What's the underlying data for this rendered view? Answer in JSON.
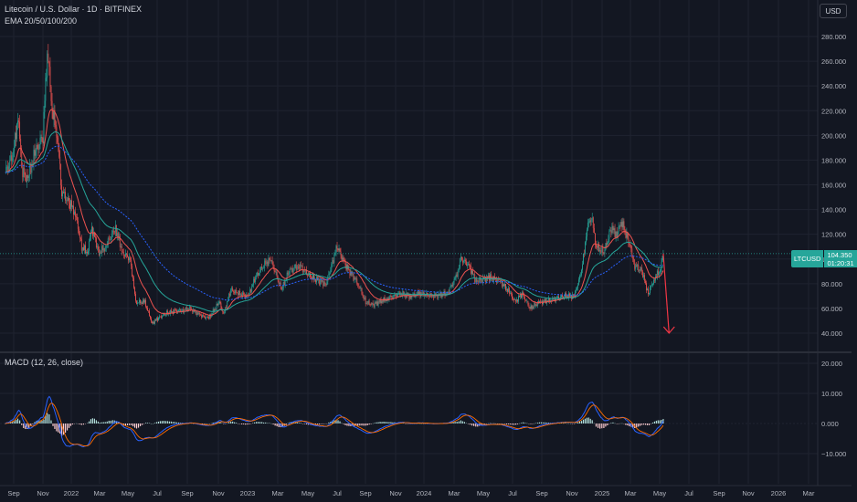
{
  "header": {
    "title": "Litecoin / U.S. Dollar · 1D · BITFINEX",
    "indicator": "EMA 20/50/100/200",
    "currency_button": "USD"
  },
  "price_tag": {
    "symbol": "LTCUSD",
    "price": "104.350",
    "countdown": "01:20:31"
  },
  "macd": {
    "label": "MACD (12, 26, close)"
  },
  "price_axis": [
    "280.000",
    "260.000",
    "240.000",
    "220.000",
    "200.000",
    "180.000",
    "160.000",
    "140.000",
    "120.000",
    "100.000",
    "80.000",
    "60.000",
    "40.000"
  ],
  "macd_axis": [
    "20.000",
    "10.000",
    "0.000",
    "−10.000"
  ],
  "time_axis": [
    "Sep",
    "Nov",
    "2022",
    "Mar",
    "May",
    "Jul",
    "Sep",
    "Nov",
    "2023",
    "Mar",
    "May",
    "Jul",
    "Sep",
    "Nov",
    "2024",
    "Mar",
    "May",
    "Jul",
    "Sep",
    "Nov",
    "2025",
    "Mar",
    "May",
    "Jul",
    "Sep",
    "Nov",
    "2026",
    "Mar"
  ],
  "colors": {
    "background": "#131722",
    "grid": "#1f2330",
    "up": "#26a69a",
    "down": "#ef5350",
    "ema20": "#ef5350",
    "ema50": "#26a69a",
    "ema100": "#2962ff",
    "macd_line": "#2962ff",
    "signal_line": "#ff6d00",
    "arrow": "#f23645"
  },
  "chart_data": {
    "type": "line",
    "price_levels": [
      280,
      260,
      240,
      220,
      200,
      180,
      160,
      140,
      120,
      100,
      80,
      60,
      40
    ],
    "close_series": [
      [
        "2021-08-15",
        170
      ],
      [
        "2021-09-01",
        185
      ],
      [
        "2021-09-10",
        215
      ],
      [
        "2021-09-20",
        170
      ],
      [
        "2021-10-01",
        165
      ],
      [
        "2021-10-15",
        185
      ],
      [
        "2021-11-01",
        200
      ],
      [
        "2021-11-10",
        270
      ],
      [
        "2021-11-20",
        220
      ],
      [
        "2021-12-01",
        200
      ],
      [
        "2021-12-10",
        155
      ],
      [
        "2021-12-25",
        145
      ],
      [
        "2022-01-05",
        140
      ],
      [
        "2022-01-20",
        110
      ],
      [
        "2022-02-01",
        105
      ],
      [
        "2022-02-10",
        125
      ],
      [
        "2022-02-25",
        105
      ],
      [
        "2022-03-10",
        110
      ],
      [
        "2022-03-31",
        125
      ],
      [
        "2022-04-15",
        105
      ],
      [
        "2022-05-01",
        100
      ],
      [
        "2022-05-12",
        65
      ],
      [
        "2022-05-31",
        65
      ],
      [
        "2022-06-15",
        48
      ],
      [
        "2022-06-30",
        53
      ],
      [
        "2022-07-15",
        56
      ],
      [
        "2022-08-01",
        58
      ],
      [
        "2022-08-15",
        58
      ],
      [
        "2022-09-01",
        60
      ],
      [
        "2022-09-20",
        55
      ],
      [
        "2022-10-10",
        52
      ],
      [
        "2022-11-01",
        65
      ],
      [
        "2022-11-10",
        55
      ],
      [
        "2022-11-25",
        75
      ],
      [
        "2022-12-10",
        72
      ],
      [
        "2022-12-31",
        70
      ],
      [
        "2023-01-15",
        85
      ],
      [
        "2023-02-01",
        95
      ],
      [
        "2023-02-15",
        100
      ],
      [
        "2023-03-10",
        75
      ],
      [
        "2023-03-25",
        90
      ],
      [
        "2023-04-15",
        95
      ],
      [
        "2023-05-10",
        85
      ],
      [
        "2023-06-10",
        80
      ],
      [
        "2023-06-25",
        100
      ],
      [
        "2023-07-03",
        110
      ],
      [
        "2023-07-20",
        95
      ],
      [
        "2023-08-15",
        80
      ],
      [
        "2023-08-31",
        65
      ],
      [
        "2023-09-15",
        63
      ],
      [
        "2023-10-15",
        68
      ],
      [
        "2023-11-10",
        72
      ],
      [
        "2023-12-01",
        70
      ],
      [
        "2023-12-20",
        72
      ],
      [
        "2024-01-15",
        70
      ],
      [
        "2024-02-15",
        72
      ],
      [
        "2024-03-05",
        85
      ],
      [
        "2024-03-15",
        100
      ],
      [
        "2024-04-01",
        95
      ],
      [
        "2024-04-15",
        82
      ],
      [
        "2024-05-15",
        85
      ],
      [
        "2024-06-05",
        82
      ],
      [
        "2024-06-25",
        72
      ],
      [
        "2024-07-05",
        65
      ],
      [
        "2024-07-20",
        72
      ],
      [
        "2024-08-05",
        60
      ],
      [
        "2024-08-25",
        65
      ],
      [
        "2024-09-20",
        67
      ],
      [
        "2024-10-15",
        70
      ],
      [
        "2024-11-05",
        70
      ],
      [
        "2024-11-20",
        90
      ],
      [
        "2024-12-01",
        125
      ],
      [
        "2024-12-10",
        135
      ],
      [
        "2024-12-20",
        110
      ],
      [
        "2025-01-05",
        105
      ],
      [
        "2025-01-20",
        125
      ],
      [
        "2025-02-01",
        120
      ],
      [
        "2025-02-10",
        130
      ],
      [
        "2025-02-25",
        115
      ],
      [
        "2025-03-10",
        95
      ],
      [
        "2025-03-25",
        90
      ],
      [
        "2025-04-07",
        72
      ],
      [
        "2025-04-20",
        85
      ],
      [
        "2025-05-01",
        90
      ],
      [
        "2025-05-08",
        104.35
      ]
    ],
    "projection": [
      [
        "2025-05-08",
        104.35
      ],
      [
        "2025-05-20",
        40
      ]
    ],
    "macd_levels": [
      20,
      10,
      0,
      -10
    ]
  }
}
